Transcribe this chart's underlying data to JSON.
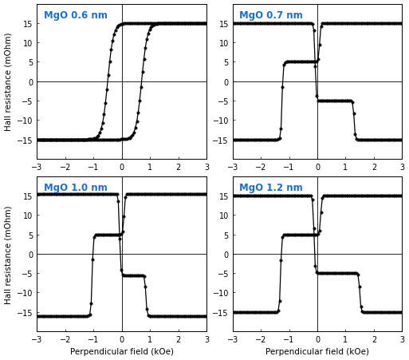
{
  "subplots": [
    {
      "label": "MgO 0.6 nm",
      "type": "simple",
      "R_sat": 15.0,
      "R_neg": -15.0,
      "Hc_fw": -0.5,
      "Hc_bk": 0.7,
      "sharp_fw": 5.0,
      "sharp_bk": 5.0
    },
    {
      "label": "MgO 0.7 nm",
      "type": "twostep",
      "R_sat": 15.0,
      "R_neg": -15.0,
      "R_pl": 5.0,
      "Hc1_fw": -1.25,
      "Hc2_fw": 0.08,
      "Hc1_bk": 1.3,
      "Hc2_bk": -0.08,
      "sharp": 25
    },
    {
      "label": "MgO 1.0 nm",
      "type": "twostep",
      "R_sat": 15.5,
      "R_neg": -16.0,
      "R_pl": 5.0,
      "Hc1_fw": -1.05,
      "Hc2_fw": 0.08,
      "Hc1_bk": 0.85,
      "Hc2_bk": -0.08,
      "sharp": 25
    },
    {
      "label": "MgO 1.2 nm",
      "type": "twostep",
      "R_sat": 15.0,
      "R_neg": -15.0,
      "R_pl": 5.0,
      "Hc1_fw": -1.3,
      "Hc2_fw": 0.12,
      "Hc1_bk": 1.5,
      "Hc2_bk": -0.12,
      "sharp": 25
    }
  ],
  "xlim": [
    -3,
    3
  ],
  "ylim": [
    -20,
    20
  ],
  "xticks": [
    -3,
    -2,
    -1,
    0,
    1,
    2,
    3
  ],
  "yticks": [
    -15,
    -10,
    -5,
    0,
    5,
    10,
    15
  ],
  "xlabel": "Perpendicular field (kOe)",
  "ylabel": "Hall resistance (mOhm)",
  "label_color": "#1a6fd4",
  "line_color": "black",
  "marker": "o",
  "marker_size": 2.5,
  "line_width": 0.9,
  "background_color": "white",
  "grid_color": "black",
  "grid_linewidth": 0.6,
  "n_points": 120
}
